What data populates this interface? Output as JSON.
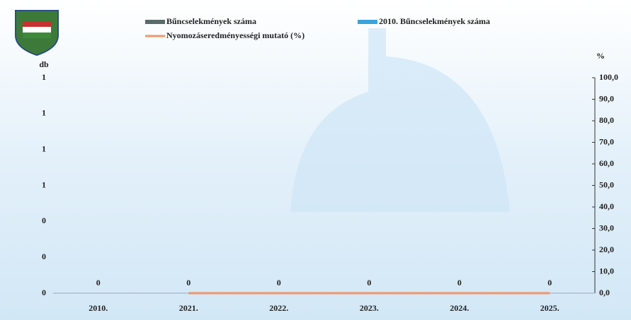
{
  "chart_data": {
    "type": "bar",
    "ylabel": "db",
    "y2label": "%",
    "categories": [
      "2010.",
      "2021.",
      "2022.",
      "2023.",
      "2024.",
      "2025."
    ],
    "series": [
      {
        "name": "Bűncselekmények száma",
        "type": "bar",
        "color": "#5a6b6b",
        "values": [
          0,
          0,
          0,
          0,
          0,
          0
        ]
      },
      {
        "name": "2010. Bűncselekmények száma",
        "type": "bar",
        "color": "#3aa3d8",
        "values": [
          0,
          null,
          null,
          null,
          null,
          null
        ]
      },
      {
        "name": "Nyomozáseredményességi mutató (%)",
        "type": "line",
        "axis": "y2",
        "color": "#f0956a",
        "values": [
          null,
          0,
          0,
          0,
          0,
          0
        ]
      }
    ],
    "ylim": [
      0,
      1.2
    ],
    "yticks": [
      0,
      {
        "value": 0.2,
        "label": "0"
      },
      {
        "value": 0.4,
        "label": "0"
      },
      {
        "value": 0.6,
        "label": "1"
      },
      {
        "value": 0.8,
        "label": "1"
      },
      {
        "value": 1.0,
        "label": "1"
      },
      {
        "value": 1.2,
        "label": "1"
      }
    ],
    "y2lim": [
      0,
      100
    ],
    "y2ticks": [
      {
        "value": 0,
        "label": "0,0"
      },
      {
        "value": 10,
        "label": "10,0"
      },
      {
        "value": 20,
        "label": "20,0"
      },
      {
        "value": 30,
        "label": "30,0"
      },
      {
        "value": 40,
        "label": "40,0"
      },
      {
        "value": 50,
        "label": "50,0"
      },
      {
        "value": 60,
        "label": "60,0"
      },
      {
        "value": 70,
        "label": "70,0"
      },
      {
        "value": 80,
        "label": "80,0"
      },
      {
        "value": 90,
        "label": "90,0"
      },
      {
        "value": 100,
        "label": "100,0"
      }
    ]
  }
}
